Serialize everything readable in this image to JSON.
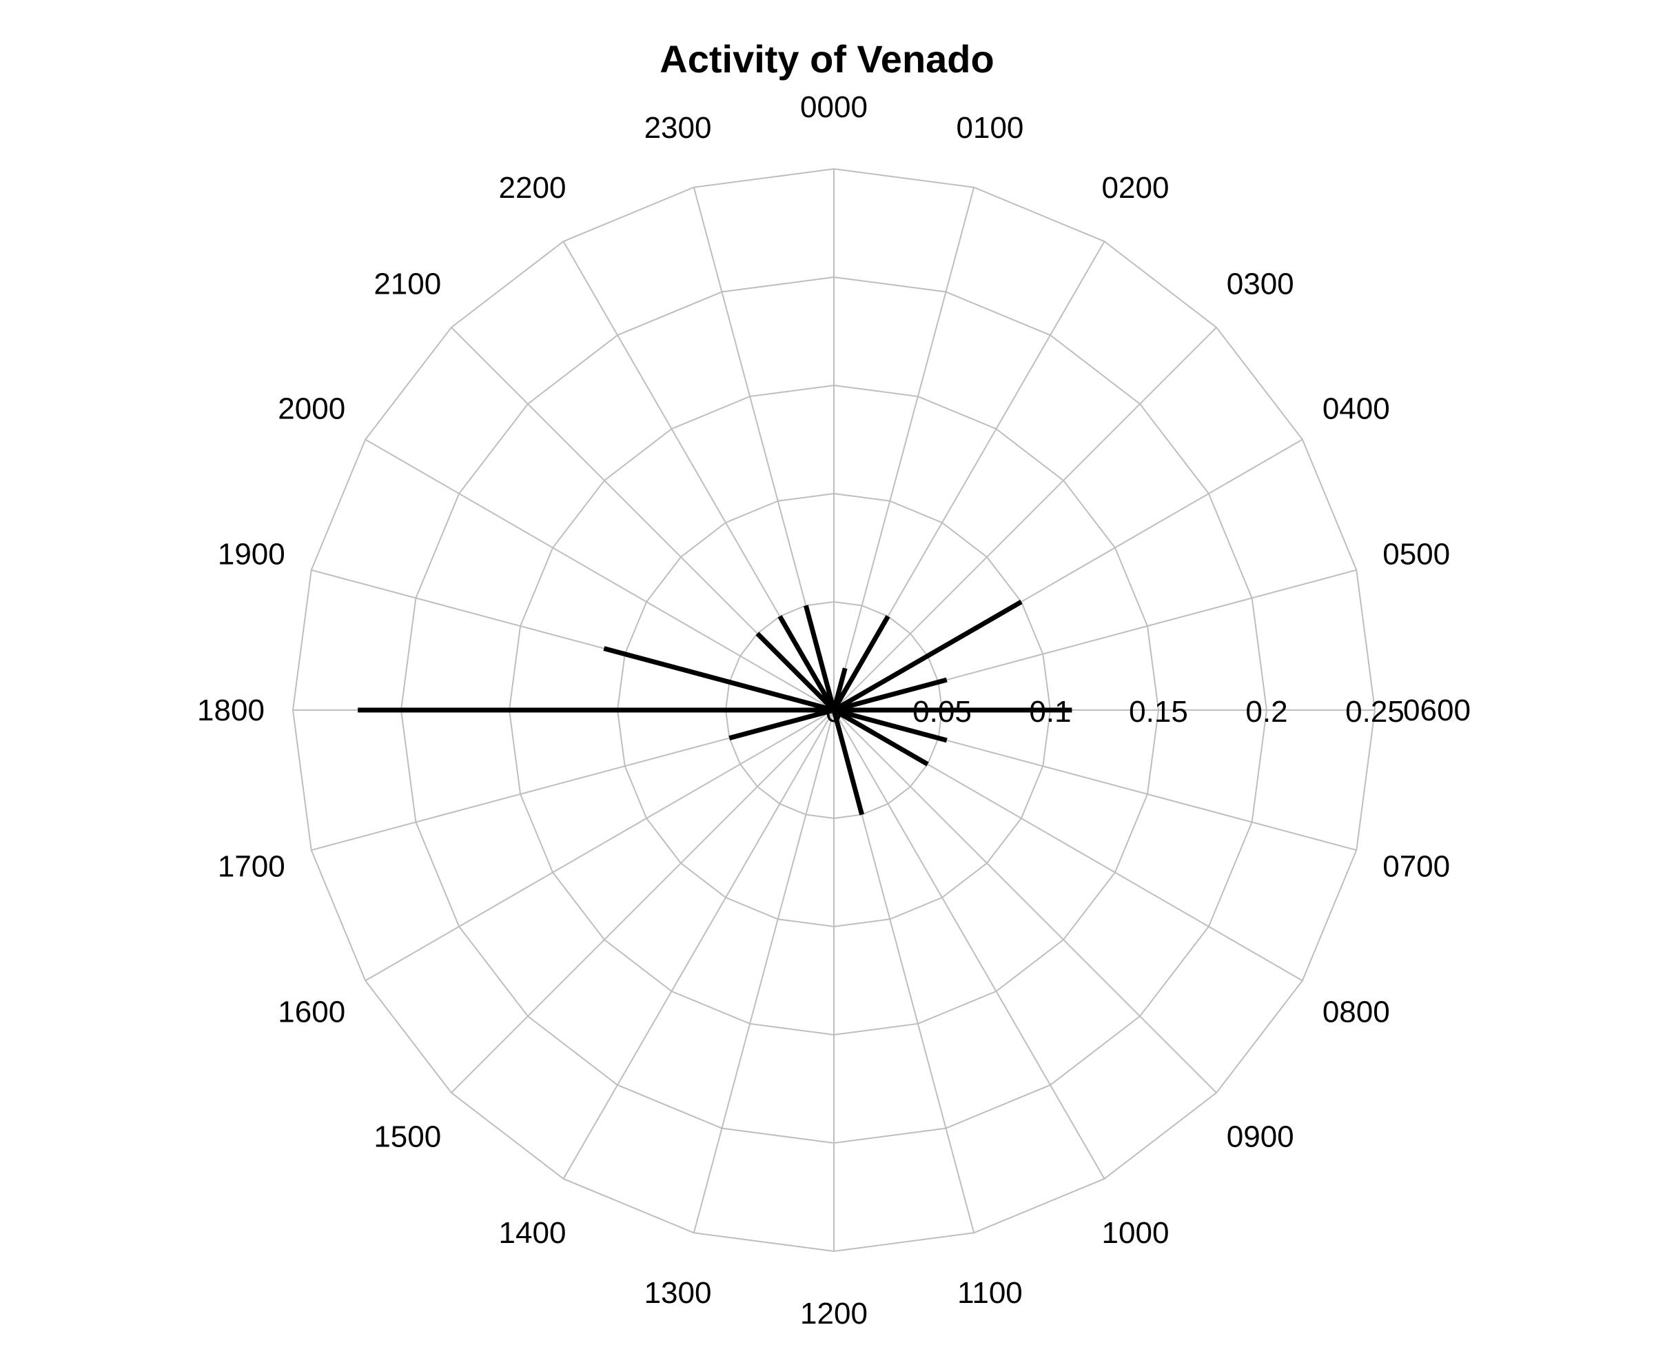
{
  "chart_data": {
    "type": "polar-rose",
    "title": "Activity of Venado",
    "angular_labels": [
      "0000",
      "0100",
      "0200",
      "0300",
      "0400",
      "0500",
      "0600",
      "0700",
      "0800",
      "0900",
      "1000",
      "1100",
      "1200",
      "1300",
      "1400",
      "1500",
      "1600",
      "1700",
      "1800",
      "1900",
      "2000",
      "2100",
      "2200",
      "2300"
    ],
    "radial_ticks": [
      "0",
      "0.05",
      "0.1",
      "0.15",
      "0.2",
      "0.25"
    ],
    "rlim": [
      0,
      0.25
    ],
    "grid": true,
    "series": [
      {
        "hours": [
          "0100",
          "0200",
          "0400",
          "0500",
          "0600",
          "0700",
          "0800",
          "1100",
          "1700",
          "1800",
          "1900",
          "2100",
          "2200",
          "2300"
        ],
        "values": [
          0.02,
          0.05,
          0.1,
          0.054,
          0.11,
          0.054,
          0.05,
          0.05,
          0.05,
          0.22,
          0.11,
          0.05,
          0.05,
          0.05
        ]
      }
    ],
    "colors": {
      "grid": "#bebebe",
      "bars": "#000000",
      "text": "#000000"
    }
  }
}
